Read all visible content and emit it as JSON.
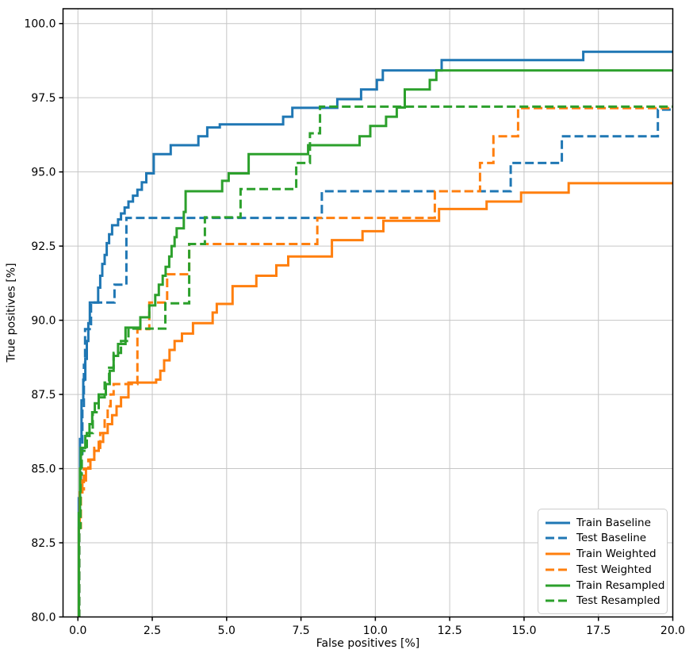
{
  "chart_data": {
    "type": "line",
    "subtype": "roc-step-curves",
    "title": "",
    "xlabel": "False positives [%]",
    "ylabel": "True positives [%]",
    "xlim": [
      -0.5,
      20
    ],
    "ylim": [
      80,
      100.5
    ],
    "x_ticks": [
      0,
      2.5,
      5,
      7.5,
      10,
      12.5,
      15,
      17.5,
      20
    ],
    "x_tick_labels": [
      "0.0",
      "2.5",
      "5.0",
      "7.5",
      "10.0",
      "12.5",
      "15.0",
      "17.5",
      "20.0"
    ],
    "y_ticks": [
      80,
      82.5,
      85,
      87.5,
      90,
      92.5,
      95,
      97.5,
      100
    ],
    "y_tick_labels": [
      "80.0",
      "82.5",
      "85.0",
      "87.5",
      "90.0",
      "92.5",
      "95.0",
      "97.5",
      "100.0"
    ],
    "grid": true,
    "grid_color": "#c6c6c6",
    "spine_color": "#000000",
    "legend": {
      "position": "lower right"
    },
    "series": [
      {
        "name": "Train Baseline",
        "color": "#1f77b4",
        "line_style": "solid",
        "points": [
          [
            0,
            80
          ],
          [
            0.03,
            84
          ],
          [
            0.07,
            86
          ],
          [
            0.12,
            87.3
          ],
          [
            0.18,
            88
          ],
          [
            0.25,
            88.7
          ],
          [
            0.3,
            89.3
          ],
          [
            0.35,
            89.9
          ],
          [
            0.4,
            90.6
          ],
          [
            0.68,
            91.1
          ],
          [
            0.75,
            91.5
          ],
          [
            0.82,
            91.9
          ],
          [
            0.9,
            92.2
          ],
          [
            0.97,
            92.6
          ],
          [
            1.05,
            92.9
          ],
          [
            1.15,
            93.2
          ],
          [
            1.35,
            93.4
          ],
          [
            1.45,
            93.6
          ],
          [
            1.57,
            93.8
          ],
          [
            1.7,
            94
          ],
          [
            1.85,
            94.2
          ],
          [
            2,
            94.4
          ],
          [
            2.15,
            94.65
          ],
          [
            2.3,
            94.95
          ],
          [
            2.55,
            95.6
          ],
          [
            3.12,
            95.9
          ],
          [
            4.05,
            96.2
          ],
          [
            4.35,
            96.5
          ],
          [
            4.77,
            96.6
          ],
          [
            6.9,
            96.86
          ],
          [
            7.21,
            97.16
          ],
          [
            8.72,
            97.45
          ],
          [
            9.52,
            97.78
          ],
          [
            10.05,
            98.1
          ],
          [
            10.25,
            98.42
          ],
          [
            12.23,
            98.77
          ],
          [
            16.99,
            99.05
          ],
          [
            20,
            99.05
          ]
        ]
      },
      {
        "name": "Test Baseline",
        "color": "#1f77b4",
        "line_style": "dashed",
        "points": [
          [
            0,
            80
          ],
          [
            0.05,
            84
          ],
          [
            0.1,
            85.5
          ],
          [
            0.15,
            87
          ],
          [
            0.2,
            88.5
          ],
          [
            0.24,
            89.7
          ],
          [
            0.44,
            90.6
          ],
          [
            1.23,
            91.2
          ],
          [
            1.63,
            93.45
          ],
          [
            8.2,
            94.35
          ],
          [
            14.55,
            95.3
          ],
          [
            16.27,
            96.2
          ],
          [
            19.5,
            97.1
          ],
          [
            20,
            97.1
          ]
        ]
      },
      {
        "name": "Train Weighted",
        "color": "#ff7f0e",
        "line_style": "solid",
        "points": [
          [
            0,
            80
          ],
          [
            0.03,
            83
          ],
          [
            0.06,
            84.2
          ],
          [
            0.15,
            84.6
          ],
          [
            0.27,
            85
          ],
          [
            0.42,
            85.3
          ],
          [
            0.55,
            85.6
          ],
          [
            0.7,
            85.9
          ],
          [
            0.85,
            86.2
          ],
          [
            1,
            86.5
          ],
          [
            1.15,
            86.8
          ],
          [
            1.3,
            87.1
          ],
          [
            1.45,
            87.4
          ],
          [
            1.7,
            87.9
          ],
          [
            2.63,
            88
          ],
          [
            2.77,
            88.3
          ],
          [
            2.9,
            88.65
          ],
          [
            3.08,
            89
          ],
          [
            3.25,
            89.3
          ],
          [
            3.5,
            89.55
          ],
          [
            3.87,
            89.9
          ],
          [
            4.53,
            90.26
          ],
          [
            4.67,
            90.55
          ],
          [
            5.2,
            91.15
          ],
          [
            6,
            91.5
          ],
          [
            6.67,
            91.85
          ],
          [
            7.07,
            92.15
          ],
          [
            8.54,
            92.7
          ],
          [
            9.57,
            93
          ],
          [
            10.27,
            93.35
          ],
          [
            12.14,
            93.75
          ],
          [
            13.74,
            94
          ],
          [
            14.9,
            94.3
          ],
          [
            16.5,
            94.62
          ],
          [
            20,
            94.62
          ]
        ]
      },
      {
        "name": "Test Weighted",
        "color": "#ff7f0e",
        "line_style": "dashed",
        "points": [
          [
            0,
            80
          ],
          [
            0.04,
            83
          ],
          [
            0.1,
            84.3
          ],
          [
            0.2,
            85
          ],
          [
            0.35,
            85.3
          ],
          [
            0.55,
            85.7
          ],
          [
            0.75,
            86.2
          ],
          [
            0.9,
            86.7
          ],
          [
            1,
            87.1
          ],
          [
            1.1,
            87.5
          ],
          [
            1.2,
            87.85
          ],
          [
            2,
            89.7
          ],
          [
            2.4,
            90.6
          ],
          [
            3,
            91.55
          ],
          [
            3.74,
            92.57
          ],
          [
            8.05,
            93.45
          ],
          [
            12,
            94.35
          ],
          [
            13.52,
            95.3
          ],
          [
            13.97,
            96.2
          ],
          [
            14.8,
            97.15
          ],
          [
            20,
            97.15
          ]
        ]
      },
      {
        "name": "Train Resampled",
        "color": "#2ca02c",
        "line_style": "solid",
        "points": [
          [
            0,
            80
          ],
          [
            0.03,
            83.5
          ],
          [
            0.07,
            85
          ],
          [
            0.1,
            85.7
          ],
          [
            0.25,
            86.1
          ],
          [
            0.39,
            86.5
          ],
          [
            0.48,
            86.9
          ],
          [
            0.57,
            87.2
          ],
          [
            0.7,
            87.5
          ],
          [
            0.94,
            87.85
          ],
          [
            1.07,
            88.3
          ],
          [
            1.2,
            88.8
          ],
          [
            1.35,
            89.2
          ],
          [
            1.6,
            89.75
          ],
          [
            2.1,
            90.1
          ],
          [
            2.4,
            90.5
          ],
          [
            2.6,
            90.85
          ],
          [
            2.72,
            91.2
          ],
          [
            2.85,
            91.5
          ],
          [
            2.95,
            91.8
          ],
          [
            3.07,
            92.15
          ],
          [
            3.15,
            92.5
          ],
          [
            3.25,
            92.8
          ],
          [
            3.32,
            93.1
          ],
          [
            3.56,
            93.65
          ],
          [
            3.62,
            94.35
          ],
          [
            4.85,
            94.7
          ],
          [
            5.07,
            94.95
          ],
          [
            5.74,
            95.6
          ],
          [
            7.74,
            95.9
          ],
          [
            9.47,
            96.2
          ],
          [
            9.83,
            96.55
          ],
          [
            10.36,
            96.86
          ],
          [
            10.72,
            97.17
          ],
          [
            10.99,
            97.78
          ],
          [
            11.83,
            98.1
          ],
          [
            12.05,
            98.42
          ],
          [
            20,
            98.42
          ]
        ]
      },
      {
        "name": "Test Resampled",
        "color": "#2ca02c",
        "line_style": "dashed",
        "points": [
          [
            0,
            80
          ],
          [
            0.04,
            83
          ],
          [
            0.09,
            84.8
          ],
          [
            0.13,
            85.6
          ],
          [
            0.3,
            86.2
          ],
          [
            0.5,
            86.9
          ],
          [
            0.7,
            87.4
          ],
          [
            0.9,
            87.9
          ],
          [
            1.05,
            88.4
          ],
          [
            1.2,
            88.9
          ],
          [
            1.45,
            89.3
          ],
          [
            1.7,
            89.72
          ],
          [
            2.94,
            90.57
          ],
          [
            3.74,
            92.57
          ],
          [
            4.27,
            93.47
          ],
          [
            5.47,
            94.42
          ],
          [
            7.34,
            95.3
          ],
          [
            7.8,
            96.3
          ],
          [
            8.14,
            97.2
          ],
          [
            20,
            97.2
          ]
        ]
      }
    ]
  }
}
